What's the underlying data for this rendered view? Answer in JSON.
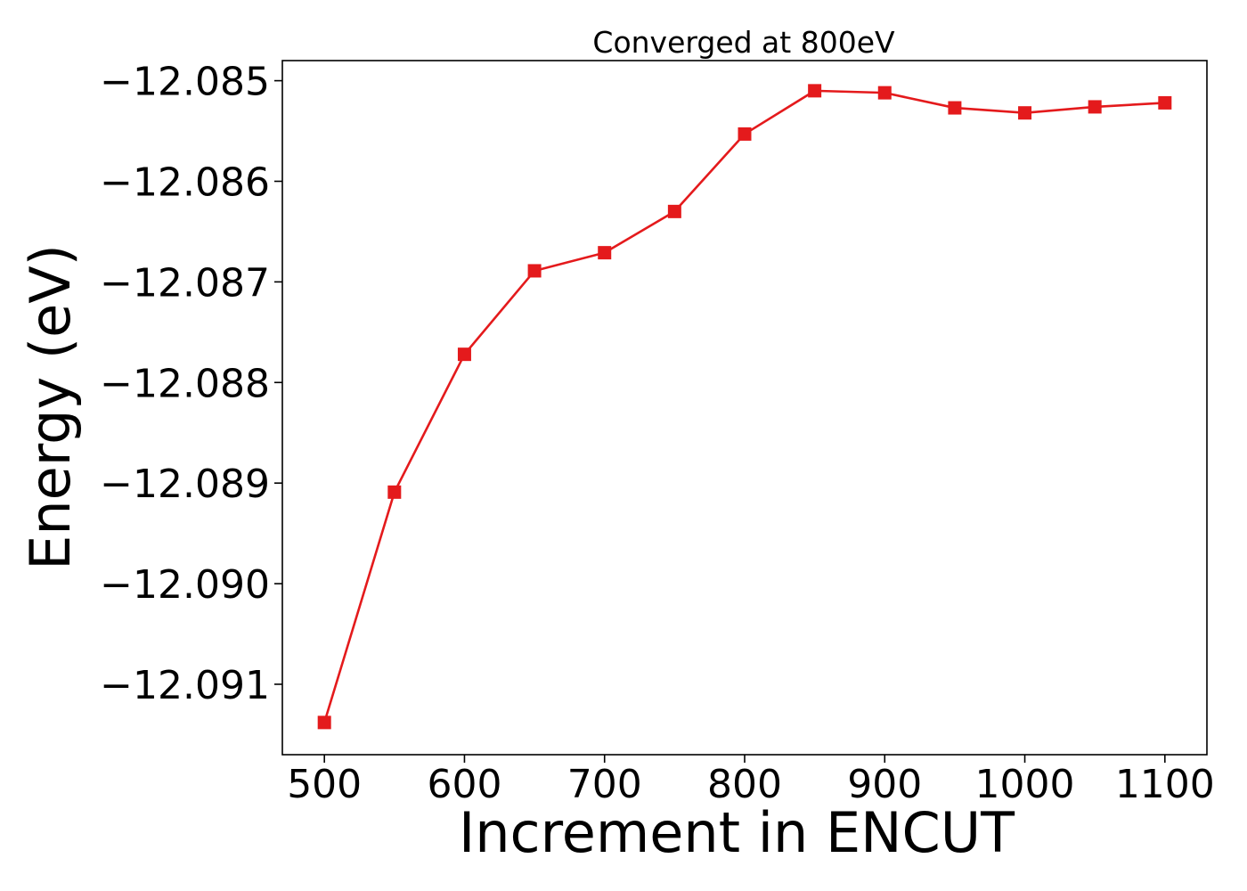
{
  "chart_data": {
    "type": "line",
    "title": "Converged at 800eV",
    "xlabel": "Increment in ENCUT",
    "ylabel": "Energy (eV)",
    "xlim": [
      470,
      1130
    ],
    "ylim": [
      -12.0917,
      -12.0848
    ],
    "x_ticks": [
      500,
      600,
      700,
      800,
      900,
      1000,
      1100
    ],
    "x_tick_labels": [
      "500",
      "600",
      "700",
      "800",
      "900",
      "1000",
      "1100"
    ],
    "y_ticks": [
      -12.085,
      -12.086,
      -12.087,
      -12.088,
      -12.089,
      -12.09,
      -12.091
    ],
    "y_tick_labels": [
      "−12.085",
      "−12.086",
      "−12.087",
      "−12.088",
      "−12.089",
      "−12.090",
      "−12.091"
    ],
    "grid": false,
    "legend": "none",
    "series": [
      {
        "color": "#e41a1c",
        "marker": "square",
        "x": [
          500,
          550,
          600,
          650,
          700,
          750,
          800,
          850,
          900,
          950,
          1000,
          1050,
          1100
        ],
        "y": [
          -12.09138,
          -12.08909,
          -12.08772,
          -12.08689,
          -12.08671,
          -12.0863,
          -12.08553,
          -12.0851,
          -12.08512,
          -12.08527,
          -12.08532,
          -12.08526,
          -12.08522
        ]
      }
    ]
  }
}
